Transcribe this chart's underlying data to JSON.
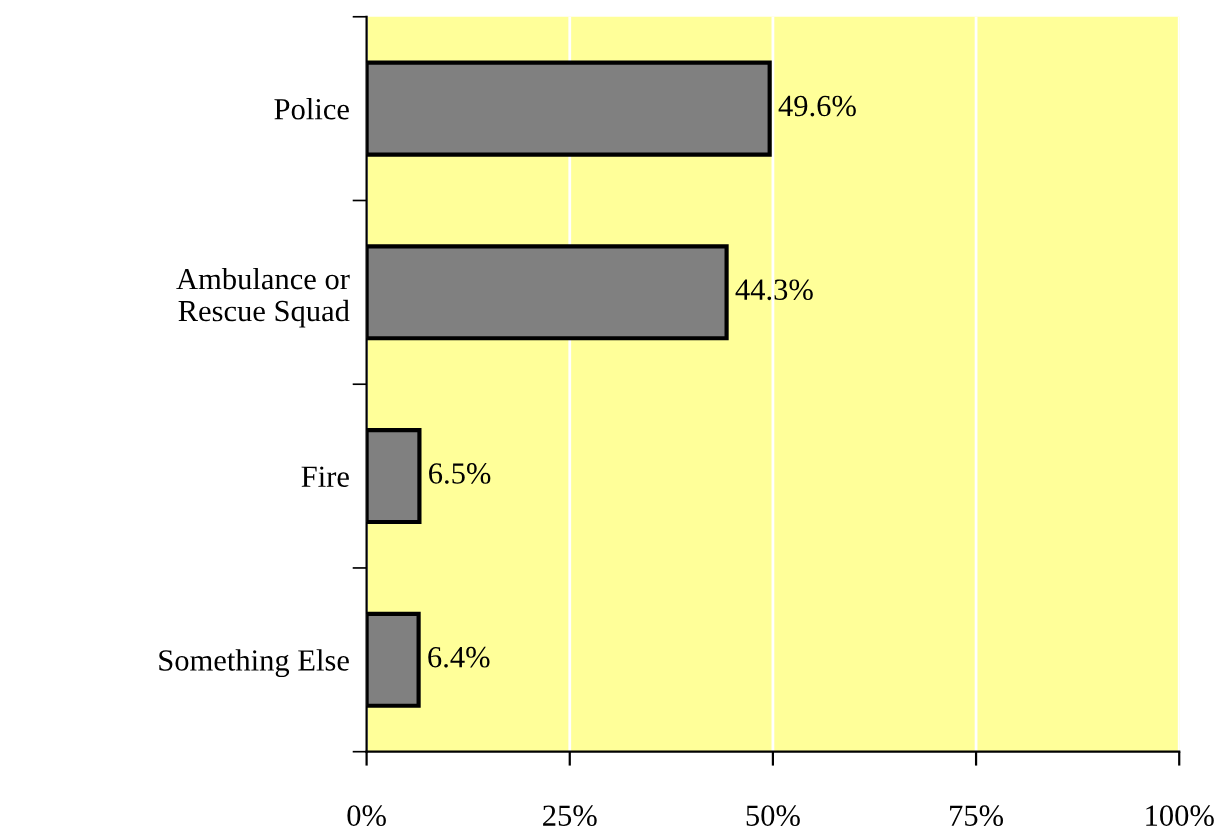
{
  "chart_data": {
    "type": "bar",
    "orientation": "horizontal",
    "categories": [
      "Police",
      "Ambulance or\nRescue Squad",
      "Fire",
      "Something Else"
    ],
    "values": [
      49.6,
      44.3,
      6.5,
      6.4
    ],
    "value_labels": [
      "49.6%",
      "44.3%",
      "6.5%",
      "6.4%"
    ],
    "color": "#808080",
    "xlim": [
      0,
      100
    ],
    "xticks": [
      {
        "value": 0,
        "label": "0%"
      },
      {
        "value": 25,
        "label": "25%"
      },
      {
        "value": 50,
        "label": "50%"
      },
      {
        "value": 75,
        "label": "75%"
      },
      {
        "value": 100,
        "label": "100%"
      }
    ],
    "grid": "x"
  }
}
